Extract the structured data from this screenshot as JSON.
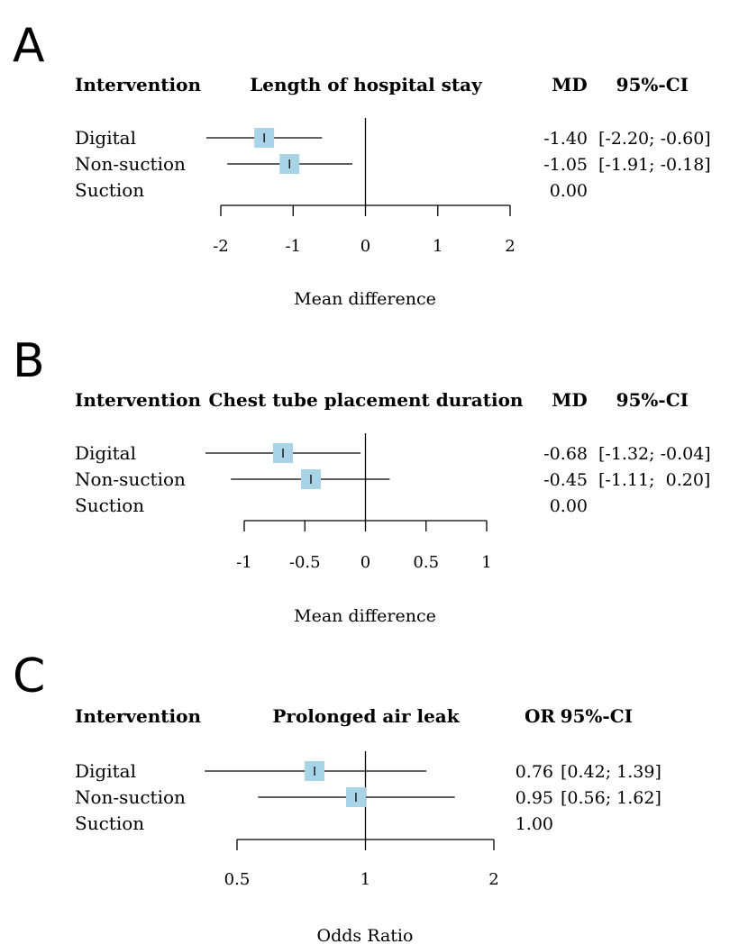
{
  "chart_data": [
    {
      "type": "forest",
      "panel_label": "A",
      "title": "Length of hospital stay",
      "header": {
        "label_col": "Intervention",
        "effect_col": "MD",
        "ci_col": "95%-CI"
      },
      "xlabel": "Mean difference",
      "xscale": "linear",
      "xlim": [
        -2,
        2
      ],
      "ticks": [
        -2,
        -1,
        0,
        1,
        2
      ],
      "tick_labels": [
        "-2",
        "-1",
        "0",
        "1",
        "2"
      ],
      "null_value": 0,
      "rows": [
        {
          "name": "Digital",
          "estimate": -1.4,
          "lower": -2.2,
          "upper": -0.6,
          "est_text": "-1.40",
          "ci_text": "[-2.20; -0.60]"
        },
        {
          "name": "Non-suction",
          "estimate": -1.05,
          "lower": -1.91,
          "upper": -0.18,
          "est_text": "-1.05",
          "ci_text": "[-1.91; -0.18]"
        },
        {
          "name": "Suction",
          "estimate": 0,
          "lower": null,
          "upper": null,
          "est_text": "0.00",
          "ci_text": ""
        }
      ]
    },
    {
      "type": "forest",
      "panel_label": "B",
      "title": "Chest tube placement duration",
      "header": {
        "label_col": "Intervention",
        "effect_col": "MD",
        "ci_col": "95%-CI"
      },
      "xlabel": "Mean difference",
      "xscale": "linear",
      "xlim": [
        -1,
        1
      ],
      "ticks": [
        -1,
        -0.5,
        0,
        0.5,
        1
      ],
      "tick_labels": [
        "-1",
        "-0.5",
        "0",
        "0.5",
        "1"
      ],
      "null_value": 0,
      "rows": [
        {
          "name": "Digital",
          "estimate": -0.68,
          "lower": -1.32,
          "upper": -0.04,
          "est_text": "-0.68",
          "ci_text": "[-1.32; -0.04]"
        },
        {
          "name": "Non-suction",
          "estimate": -0.45,
          "lower": -1.11,
          "upper": 0.2,
          "est_text": "-0.45",
          "ci_text": "[-1.11;  0.20]"
        },
        {
          "name": "Suction",
          "estimate": 0,
          "lower": null,
          "upper": null,
          "est_text": "0.00",
          "ci_text": ""
        }
      ]
    },
    {
      "type": "forest",
      "panel_label": "C",
      "title": "Prolonged air leak",
      "header": {
        "label_col": "Intervention",
        "effect_col": "OR",
        "ci_col": "95%-CI"
      },
      "xlabel": "Odds Ratio",
      "xscale": "log",
      "xlim": [
        0.5,
        2
      ],
      "ticks": [
        0.5,
        1,
        2
      ],
      "tick_labels": [
        "0.5",
        "1",
        "2"
      ],
      "null_value": 1,
      "rows": [
        {
          "name": "Digital",
          "estimate": 0.76,
          "lower": 0.42,
          "upper": 1.39,
          "est_text": "0.76",
          "ci_text": "[0.42; 1.39]"
        },
        {
          "name": "Non-suction",
          "estimate": 0.95,
          "lower": 0.56,
          "upper": 1.62,
          "est_text": "0.95",
          "ci_text": "[0.56; 1.62]"
        },
        {
          "name": "Suction",
          "estimate": 1,
          "lower": null,
          "upper": null,
          "est_text": "1.00",
          "ci_text": ""
        }
      ]
    }
  ],
  "colors": {
    "marker_fill": "#a9d3e6",
    "line": "#000000"
  }
}
